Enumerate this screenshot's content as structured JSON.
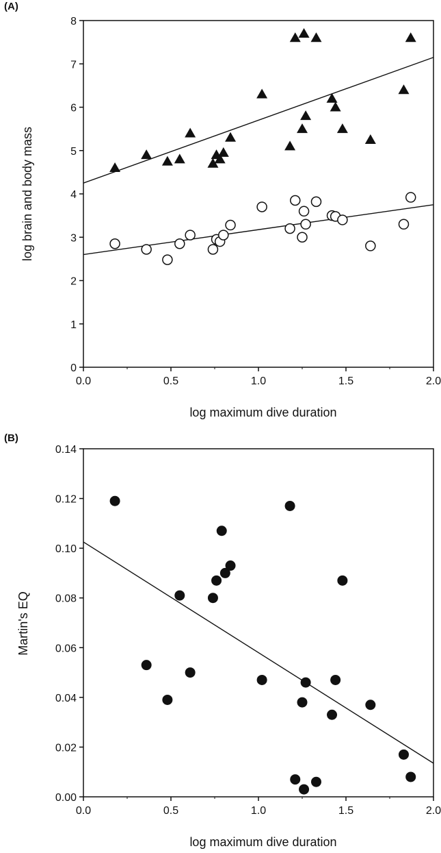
{
  "chart_data": [
    {
      "panel_label": "(A)",
      "type": "scatter",
      "xlabel": "log maximum dive duration",
      "ylabel": "log brain and body mass",
      "xlim": [
        0.0,
        2.0
      ],
      "ylim": [
        0,
        8
      ],
      "xticks": [
        "0.0",
        "0.5",
        "1.0",
        "1.5",
        "2.0"
      ],
      "yticks": [
        "0",
        "1",
        "2",
        "3",
        "4",
        "5",
        "6",
        "7",
        "8"
      ],
      "grid": false,
      "series": [
        {
          "marker": "filled-triangle",
          "points": [
            [
              0.18,
              4.6
            ],
            [
              0.36,
              4.9
            ],
            [
              0.48,
              4.75
            ],
            [
              0.55,
              4.8
            ],
            [
              0.61,
              5.4
            ],
            [
              0.74,
              4.7
            ],
            [
              0.76,
              4.9
            ],
            [
              0.78,
              4.8
            ],
            [
              0.8,
              4.95
            ],
            [
              0.84,
              5.3
            ],
            [
              1.02,
              6.3
            ],
            [
              1.18,
              5.1
            ],
            [
              1.21,
              7.6
            ],
            [
              1.25,
              5.5
            ],
            [
              1.26,
              7.7
            ],
            [
              1.27,
              5.8
            ],
            [
              1.33,
              7.6
            ],
            [
              1.42,
              6.2
            ],
            [
              1.44,
              6.0
            ],
            [
              1.48,
              5.5
            ],
            [
              1.64,
              5.25
            ],
            [
              1.83,
              6.4
            ],
            [
              1.87,
              7.6
            ]
          ],
          "fit": [
            [
              0.0,
              4.25
            ],
            [
              2.0,
              7.15
            ]
          ]
        },
        {
          "marker": "open-circle",
          "points": [
            [
              0.18,
              2.85
            ],
            [
              0.36,
              2.72
            ],
            [
              0.48,
              2.48
            ],
            [
              0.55,
              2.85
            ],
            [
              0.61,
              3.05
            ],
            [
              0.74,
              2.72
            ],
            [
              0.76,
              2.95
            ],
            [
              0.78,
              2.9
            ],
            [
              0.8,
              3.05
            ],
            [
              0.84,
              3.28
            ],
            [
              1.02,
              3.7
            ],
            [
              1.18,
              3.2
            ],
            [
              1.21,
              3.85
            ],
            [
              1.25,
              3.0
            ],
            [
              1.26,
              3.6
            ],
            [
              1.27,
              3.3
            ],
            [
              1.33,
              3.82
            ],
            [
              1.42,
              3.5
            ],
            [
              1.44,
              3.48
            ],
            [
              1.48,
              3.4
            ],
            [
              1.64,
              2.8
            ],
            [
              1.83,
              3.3
            ],
            [
              1.87,
              3.92
            ]
          ],
          "fit": [
            [
              0.0,
              2.6
            ],
            [
              2.0,
              3.75
            ]
          ]
        }
      ]
    },
    {
      "panel_label": "(B)",
      "type": "scatter",
      "xlabel": "log maximum dive duration",
      "ylabel": "Martin's EQ",
      "xlim": [
        0.0,
        2.0
      ],
      "ylim": [
        0.0,
        0.14
      ],
      "xticks": [
        "0.0",
        "0.5",
        "1.0",
        "1.5",
        "2.0"
      ],
      "yticks": [
        "0.00",
        "0.02",
        "0.04",
        "0.06",
        "0.08",
        "0.10",
        "0.12",
        "0.14"
      ],
      "grid": false,
      "series": [
        {
          "marker": "filled-circle",
          "points": [
            [
              0.18,
              0.119
            ],
            [
              0.36,
              0.053
            ],
            [
              0.48,
              0.039
            ],
            [
              0.55,
              0.081
            ],
            [
              0.61,
              0.05
            ],
            [
              0.74,
              0.08
            ],
            [
              0.76,
              0.087
            ],
            [
              0.79,
              0.107
            ],
            [
              0.81,
              0.09
            ],
            [
              0.84,
              0.093
            ],
            [
              1.02,
              0.047
            ],
            [
              1.18,
              0.117
            ],
            [
              1.21,
              0.007
            ],
            [
              1.25,
              0.038
            ],
            [
              1.26,
              0.003
            ],
            [
              1.27,
              0.046
            ],
            [
              1.33,
              0.006
            ],
            [
              1.42,
              0.033
            ],
            [
              1.44,
              0.047
            ],
            [
              1.48,
              0.087
            ],
            [
              1.64,
              0.037
            ],
            [
              1.83,
              0.017
            ],
            [
              1.87,
              0.008
            ]
          ],
          "fit": [
            [
              0.0,
              0.1025
            ],
            [
              2.0,
              0.0135
            ]
          ]
        }
      ]
    }
  ]
}
